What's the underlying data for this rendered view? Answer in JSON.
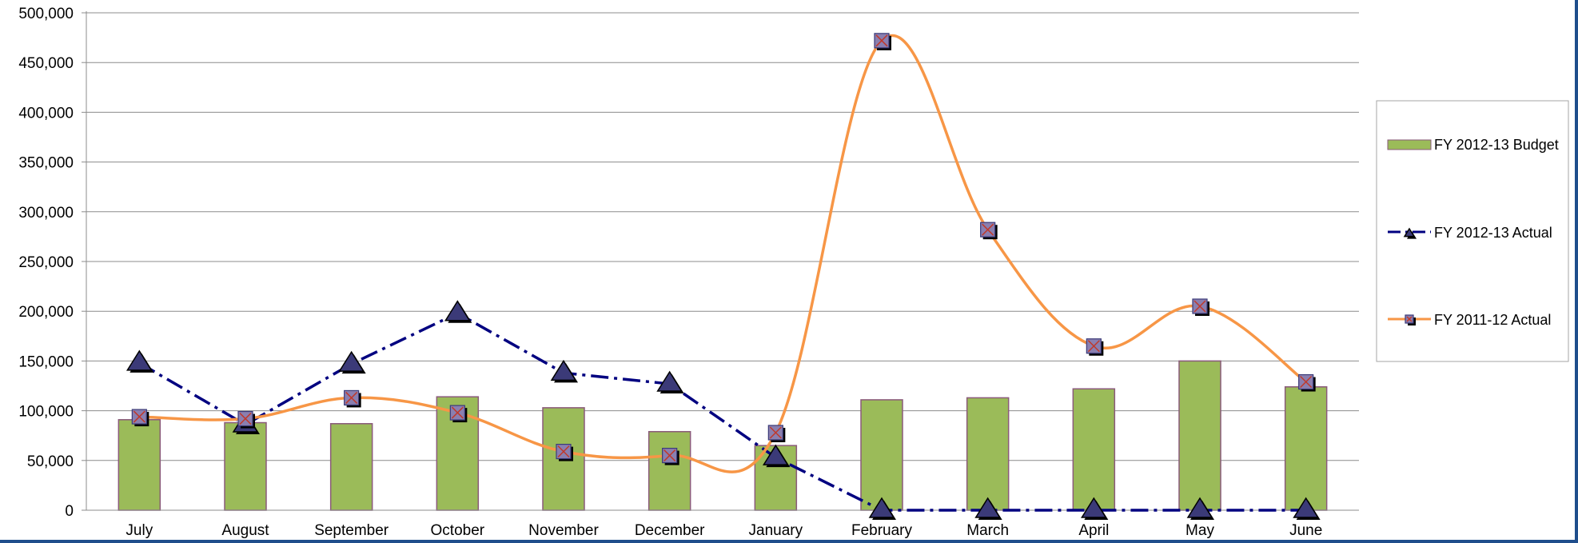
{
  "chart_data": {
    "type": "bar",
    "categories": [
      "July",
      "August",
      "September",
      "October",
      "November",
      "December",
      "January",
      "February",
      "March",
      "April",
      "May",
      "June"
    ],
    "ylim": [
      0,
      500000
    ],
    "yticks": [
      0,
      50000,
      100000,
      150000,
      200000,
      250000,
      300000,
      350000,
      400000,
      450000,
      500000
    ],
    "ytick_labels": [
      "0",
      "50,000",
      "100,000",
      "150,000",
      "200,000",
      "250,000",
      "300,000",
      "350,000",
      "400,000",
      "450,000",
      "500,000"
    ],
    "grid": true,
    "legend_position": "right",
    "series": [
      {
        "name": "FY 2012-13 Budget",
        "type": "bar",
        "color": "#9bbb59",
        "edge_color": "#8a5a7a",
        "values": [
          91000,
          88000,
          87000,
          114000,
          103000,
          79000,
          65000,
          111000,
          113000,
          122000,
          150000,
          124000
        ]
      },
      {
        "name": "FY 2012-13 Actual",
        "type": "line",
        "style": "dash-dot",
        "marker": "triangle",
        "color": "#000080",
        "values": [
          148000,
          86000,
          147000,
          198000,
          138000,
          127000,
          53000,
          0,
          0,
          0,
          0,
          0
        ]
      },
      {
        "name": "FY 2011-12 Actual",
        "type": "line",
        "style": "smooth",
        "marker": "x-square",
        "color": "#f79646",
        "values": [
          94000,
          92000,
          113000,
          98000,
          59000,
          55000,
          78000,
          472000,
          282000,
          165000,
          205000,
          129000
        ]
      }
    ]
  }
}
